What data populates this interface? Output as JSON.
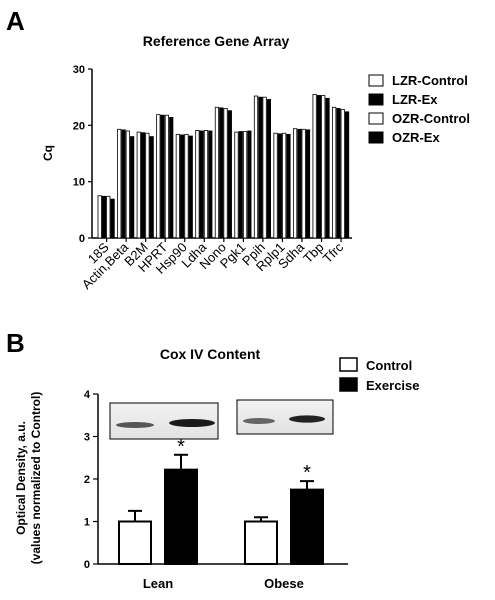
{
  "panels": {
    "a": {
      "letter": "A"
    },
    "b": {
      "letter": "B"
    }
  },
  "chart_data": [
    {
      "type": "bar",
      "title": "Reference Gene Array",
      "xlabel": "",
      "ylabel": "Cq",
      "ylim": [
        0,
        30
      ],
      "yticks": [
        0,
        10,
        20,
        30
      ],
      "categories": [
        "18S",
        "Actin,Beta",
        "B2M",
        "HPRT",
        "Hsp90",
        "Ldha",
        "Nono",
        "Pgk1",
        "Ppih",
        "Rplp1",
        "Sdha",
        "Tbp",
        "Tfrc"
      ],
      "series": [
        {
          "name": "LZR-Control",
          "color": "#ffffff",
          "values": [
            7.5,
            19.3,
            18.8,
            21.9,
            18.4,
            19.1,
            23.2,
            18.8,
            25.2,
            18.6,
            19.4,
            25.5,
            23.2
          ]
        },
        {
          "name": "LZR-Ex",
          "color": "#000000",
          "values": [
            7.4,
            19.2,
            18.7,
            21.8,
            18.3,
            19.0,
            23.1,
            18.9,
            25.0,
            18.5,
            19.3,
            25.3,
            23.0
          ]
        },
        {
          "name": "OZR-Control",
          "color": "#ffffff",
          "values": [
            7.4,
            19.0,
            18.6,
            21.8,
            18.4,
            19.1,
            23.0,
            18.9,
            25.0,
            18.6,
            19.3,
            25.3,
            22.8
          ]
        },
        {
          "name": "OZR-Ex",
          "color": "#000000",
          "values": [
            6.9,
            18.0,
            18.0,
            21.4,
            18.1,
            19.0,
            22.6,
            19.0,
            24.6,
            18.4,
            19.2,
            24.8,
            22.4
          ]
        }
      ],
      "legend": "right",
      "grid": false
    },
    {
      "type": "bar",
      "title": "Cox IV Content",
      "xlabel": "",
      "ylabel": "Optical Density, a.u. (values normalized to Control)",
      "ylabel_lines": [
        "Optical Density, a.u.",
        "(values normalized to Control)"
      ],
      "ylim": [
        0,
        4
      ],
      "yticks": [
        0,
        1,
        2,
        3,
        4
      ],
      "categories": [
        "Lean",
        "Obese"
      ],
      "series": [
        {
          "name": "Control",
          "color": "#ffffff",
          "values": [
            1.0,
            1.0
          ],
          "error": [
            0.25,
            0.1
          ]
        },
        {
          "name": "Exercise",
          "color": "#000000",
          "values": [
            2.22,
            1.75
          ],
          "error": [
            0.35,
            0.2
          ]
        }
      ],
      "significance": [
        {
          "category": "Lean",
          "series": "Exercise",
          "label": "*"
        },
        {
          "category": "Obese",
          "series": "Exercise",
          "label": "*"
        }
      ],
      "legend": "top-right",
      "grid": false
    }
  ]
}
